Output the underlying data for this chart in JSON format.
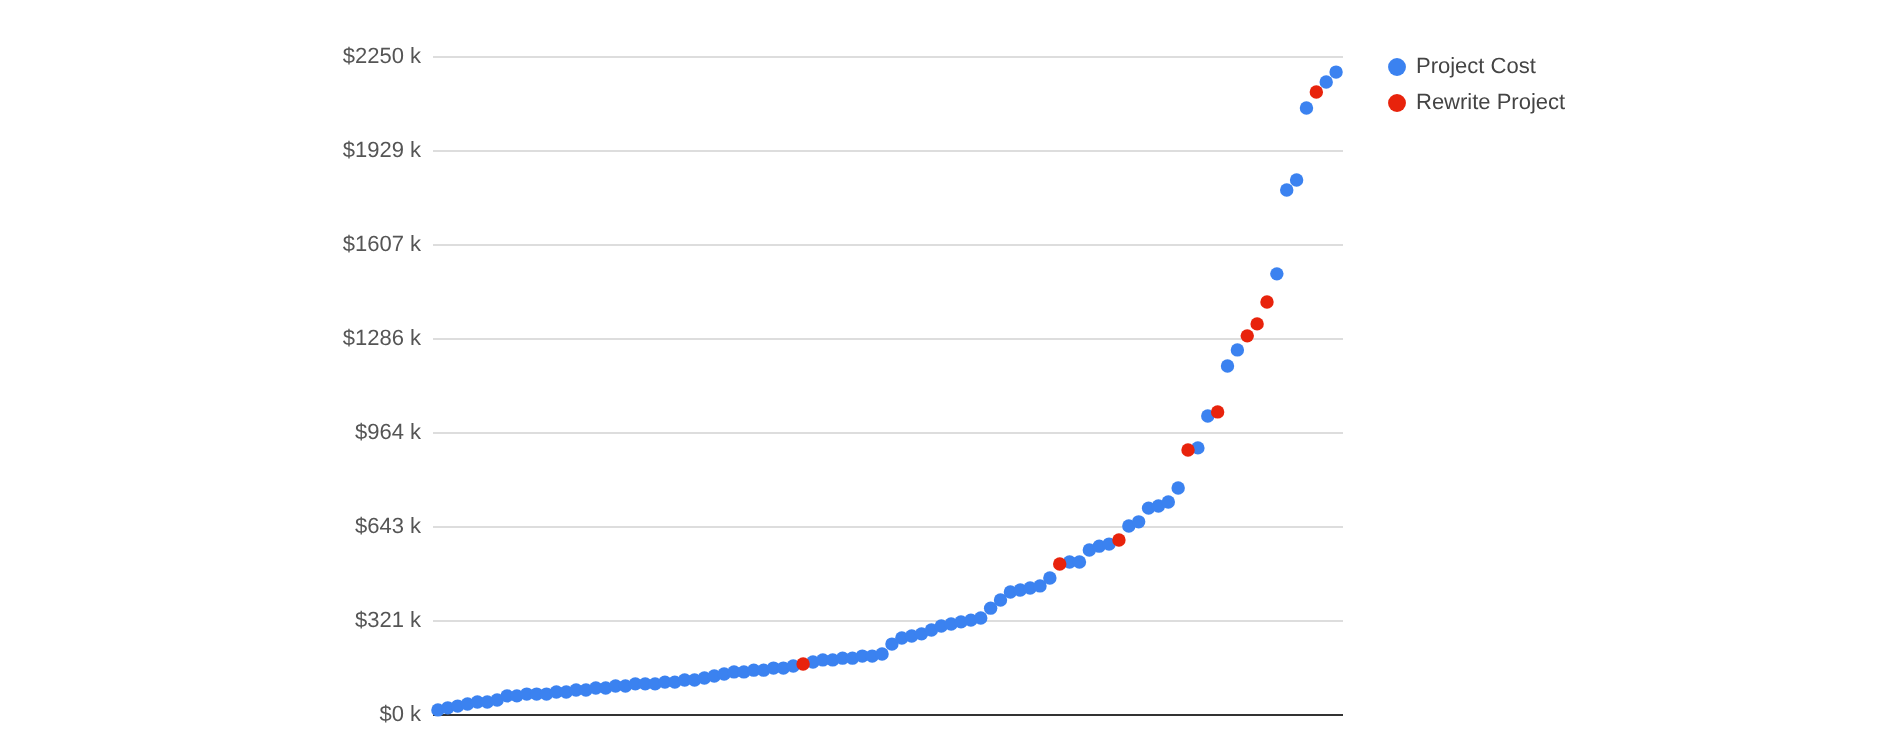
{
  "chart_data": {
    "type": "scatter",
    "categories": [
      null,
      null,
      null,
      null,
      null,
      null,
      null,
      null,
      null,
      null,
      null,
      null,
      null,
      null,
      null,
      null,
      null,
      null,
      null,
      null,
      null,
      null,
      null,
      null,
      null,
      null,
      null,
      null,
      null,
      null,
      null,
      null,
      null,
      null,
      null,
      null,
      null,
      null,
      null,
      null,
      null,
      null,
      null,
      null,
      null,
      null,
      null,
      null,
      null,
      null,
      null,
      null,
      null,
      null,
      null,
      null,
      null,
      null,
      null,
      null,
      null,
      null,
      null,
      null,
      null,
      null,
      null,
      null,
      null,
      null,
      null,
      null,
      null,
      null,
      null,
      null,
      null,
      null,
      null,
      null,
      null,
      null,
      null,
      null,
      null,
      null,
      null,
      null,
      null,
      null,
      null,
      null
    ],
    "series": [
      {
        "name": "Project Cost",
        "color": "#3b82f0",
        "values": [
          14,
          21,
          27,
          34,
          41,
          41,
          48,
          62,
          62,
          68,
          68,
          68,
          75,
          75,
          82,
          82,
          89,
          89,
          96,
          96,
          103,
          103,
          103,
          109,
          109,
          116,
          116,
          123,
          130,
          137,
          144,
          144,
          150,
          150,
          157,
          157,
          164,
          null,
          178,
          185,
          185,
          191,
          191,
          198,
          198,
          205,
          239,
          260,
          267,
          274,
          287,
          301,
          308,
          315,
          321,
          328,
          362,
          390,
          417,
          424,
          431,
          438,
          465,
          null,
          520,
          520,
          561,
          574,
          581,
          null,
          643,
          657,
          704,
          711,
          725,
          773,
          null,
          910,
          1019,
          null,
          1190,
          1245,
          null,
          null,
          null,
          1505,
          1792,
          1826,
          2072,
          null,
          2161,
          2195
        ]
      },
      {
        "name": "Rewrite Project",
        "color": "#e8230c",
        "values": [
          null,
          null,
          null,
          null,
          null,
          null,
          null,
          null,
          null,
          null,
          null,
          null,
          null,
          null,
          null,
          null,
          null,
          null,
          null,
          null,
          null,
          null,
          null,
          null,
          null,
          null,
          null,
          null,
          null,
          null,
          null,
          null,
          null,
          null,
          null,
          null,
          null,
          171,
          null,
          null,
          null,
          null,
          null,
          null,
          null,
          null,
          null,
          null,
          null,
          null,
          null,
          null,
          null,
          null,
          null,
          null,
          null,
          null,
          null,
          null,
          null,
          null,
          null,
          513,
          null,
          null,
          null,
          null,
          null,
          595,
          null,
          null,
          null,
          null,
          null,
          null,
          903,
          null,
          null,
          1033,
          null,
          null,
          1293,
          1334,
          1409,
          null,
          null,
          null,
          null,
          2127,
          null,
          null
        ]
      }
    ],
    "ylim": [
      0,
      2250
    ],
    "yticks": [
      {
        "value": 0,
        "label": "$0 k"
      },
      {
        "value": 321,
        "label": "$321 k"
      },
      {
        "value": 643,
        "label": "$643 k"
      },
      {
        "value": 964,
        "label": "$964 k"
      },
      {
        "value": 1286,
        "label": "$1286 k"
      },
      {
        "value": 1607,
        "label": "$1607 k"
      },
      {
        "value": 1929,
        "label": "$1929 k"
      },
      {
        "value": 2250,
        "label": "$2250 k"
      }
    ],
    "grid": "y",
    "legend": "top right",
    "marker": "circle",
    "tick_labels": "y"
  }
}
